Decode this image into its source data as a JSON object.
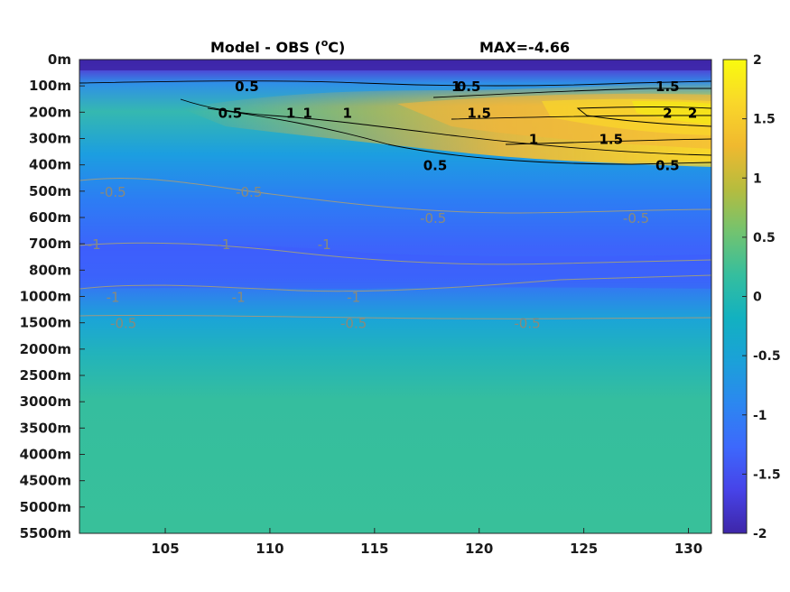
{
  "chart_data": {
    "type": "heatmap",
    "title": "Model - OBS (",
    "title_unit_super": "o",
    "title_unit_tail": "C)",
    "max_label": "MAX=-4.66",
    "x_ticks": [
      "105",
      "110",
      "115",
      "120",
      "125",
      "130"
    ],
    "x_tick_values": [
      105,
      110,
      115,
      120,
      125,
      130
    ],
    "xlim": [
      100.9,
      131.1
    ],
    "y_ticks": [
      "0m",
      "100m",
      "200m",
      "300m",
      "400m",
      "500m",
      "600m",
      "700m",
      "800m",
      "1000m",
      "1500m",
      "2000m",
      "2500m",
      "3000m",
      "3500m",
      "4000m",
      "4500m",
      "5000m",
      "5500m"
    ],
    "colorbar": {
      "ticks": [
        "2",
        "1.5",
        "1",
        "0.5",
        "0",
        "-0.5",
        "-1",
        "-1.5",
        "-2"
      ],
      "tick_values": [
        2,
        1.5,
        1,
        0.5,
        0,
        -0.5,
        -1,
        -1.5,
        -2
      ],
      "range": [
        -2,
        2
      ],
      "colormap": "parula",
      "colors": [
        "#3e26a8",
        "#4743e8",
        "#3d68fc",
        "#2c87f0",
        "#1ba1d8",
        "#12b1c0",
        "#35be9e",
        "#72c370",
        "#b6bc3e",
        "#f0b92f",
        "#f9d72a",
        "#f9fb0e"
      ]
    },
    "contour_labels_positive": [
      {
        "text": "0.5",
        "x": 108.9,
        "depth": "100m"
      },
      {
        "text": "1",
        "x": 111.0,
        "depth": "200m"
      },
      {
        "text": "1",
        "x": 111.8,
        "depth": "200m"
      },
      {
        "text": "0.5",
        "x": 108.1,
        "depth": "200m"
      },
      {
        "text": "1",
        "x": 113.7,
        "depth": "200m"
      },
      {
        "text": "0.5",
        "x": 119.5,
        "depth": "100m"
      },
      {
        "text": "1",
        "x": 118.9,
        "depth": "100m"
      },
      {
        "text": "1.5",
        "x": 120.0,
        "depth": "200m"
      },
      {
        "text": "1",
        "x": 122.6,
        "depth": "300m"
      },
      {
        "text": "0.5",
        "x": 117.9,
        "depth": "400m"
      },
      {
        "text": "1.5",
        "x": 126.3,
        "depth": "300m"
      },
      {
        "text": "1.5",
        "x": 129.0,
        "depth": "100m"
      },
      {
        "text": "2",
        "x": 130.2,
        "depth": "200m"
      },
      {
        "text": "2",
        "x": 129.0,
        "depth": "200m"
      },
      {
        "text": "0.5",
        "x": 129.0,
        "depth": "400m"
      }
    ],
    "contour_labels_negative": [
      {
        "text": "-0.5",
        "x": 102.5,
        "depth": "500m"
      },
      {
        "text": "-0.5",
        "x": 109.0,
        "depth": "500m"
      },
      {
        "text": "-0.5",
        "x": 117.8,
        "depth": "600m"
      },
      {
        "text": "-0.5",
        "x": 127.5,
        "depth": "600m"
      },
      {
        "text": "-1",
        "x": 101.6,
        "depth": "700m"
      },
      {
        "text": "-1",
        "x": 107.8,
        "depth": "700m"
      },
      {
        "text": "-1",
        "x": 112.6,
        "depth": "700m"
      },
      {
        "text": "-1",
        "x": 102.5,
        "depth": "1000m"
      },
      {
        "text": "-1",
        "x": 108.5,
        "depth": "1000m"
      },
      {
        "text": "-1",
        "x": 114.0,
        "depth": "1000m"
      },
      {
        "text": "-0.5",
        "x": 103.0,
        "depth": "1500m"
      },
      {
        "text": "-0.5",
        "x": 114.0,
        "depth": "1500m"
      },
      {
        "text": "-0.5",
        "x": 122.3,
        "depth": "1500m"
      }
    ],
    "grid": false,
    "legend": "colorbar-right"
  }
}
